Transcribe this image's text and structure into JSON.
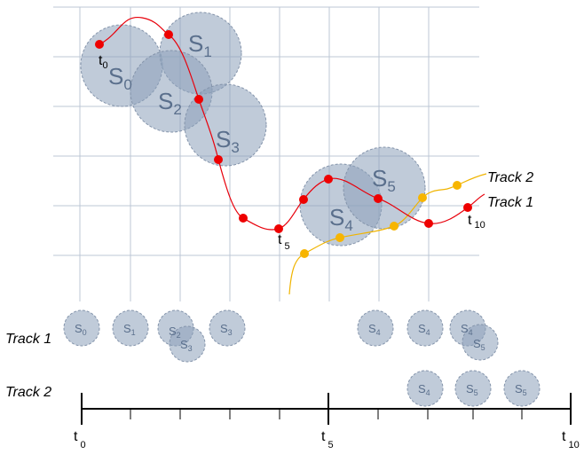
{
  "legend": {
    "track2": "Track 2",
    "track1": "Track 1"
  },
  "rows": {
    "track1": "Track 1",
    "track2": "Track 2"
  },
  "upper_labels": {
    "t0": {
      "base": "t",
      "sub": "0"
    },
    "t5": {
      "base": "t",
      "sub": "5"
    },
    "t10": {
      "base": "t",
      "sub": "10"
    }
  },
  "timeline": {
    "t0": {
      "base": "t",
      "sub": "0"
    },
    "t5": {
      "base": "t",
      "sub": "5"
    },
    "t10": {
      "base": "t",
      "sub": "10"
    }
  },
  "sets": {
    "S0": {
      "base": "S",
      "sub": "0"
    },
    "S1": {
      "base": "S",
      "sub": "1"
    },
    "S2": {
      "base": "S",
      "sub": "2"
    },
    "S3": {
      "base": "S",
      "sub": "3"
    },
    "S4": {
      "base": "S",
      "sub": "4"
    },
    "S5": {
      "base": "S",
      "sub": "5"
    }
  },
  "colors": {
    "track1": "#e8000b",
    "track2": "#f0b400",
    "circle_fill": "#8ca0b9",
    "grid": "#bcc7d6"
  }
}
